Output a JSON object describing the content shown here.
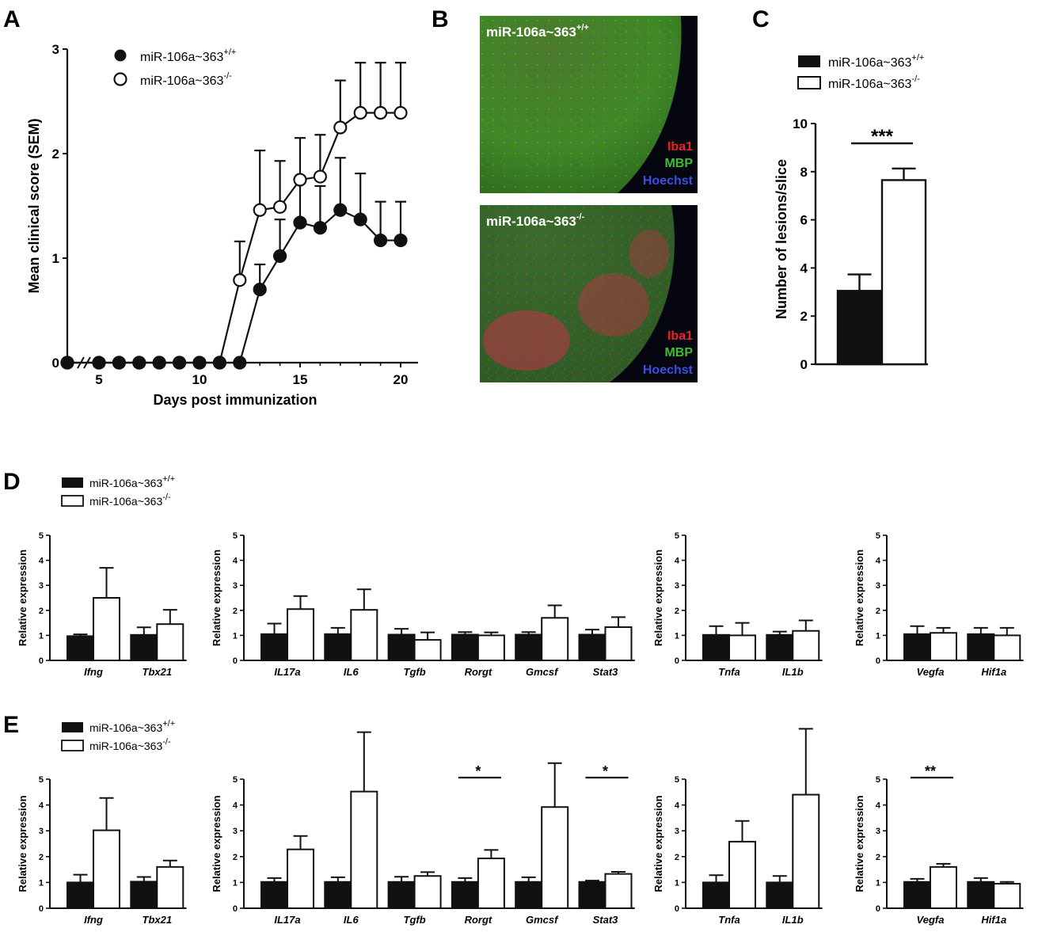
{
  "panels": {
    "A": "A",
    "B": "B",
    "C": "C",
    "D": "D",
    "E": "E"
  },
  "legend": {
    "wt_base": "miR-106a~363",
    "wt_sup": "+/+",
    "ko_base": "miR-106a~363",
    "ko_sup": "-/-"
  },
  "micrographs": {
    "top_label_base": "miR-106a~363",
    "top_label_sup": "+/+",
    "bottom_label_base": "miR-106a~363",
    "bottom_label_sup": "-/-",
    "stains": [
      "Iba1",
      "MBP",
      "Hoechst"
    ]
  },
  "colors": {
    "wt": "#111111",
    "ko": "#ffffff",
    "iba1": "#e8232a",
    "mbp": "#3fbf2f",
    "hoechst": "#3b4fe0"
  },
  "chart_data": [
    {
      "panel": "A",
      "type": "line",
      "xlabel": "Days post immunization",
      "ylabel": "Mean clinical score (SEM)",
      "xticks": [
        0,
        5,
        10,
        15,
        20
      ],
      "yticks": [
        0,
        1,
        2,
        3
      ],
      "ylim": [
        0,
        3
      ],
      "x_break": true,
      "series": [
        {
          "name": "miR-106a~363+/+",
          "x": [
            0,
            5,
            6,
            7,
            8,
            9,
            10,
            11,
            12,
            13,
            14,
            15,
            16,
            17,
            18,
            19,
            20
          ],
          "y": [
            0,
            0,
            0,
            0,
            0,
            0,
            0,
            0,
            0,
            0.7,
            1.02,
            1.34,
            1.29,
            1.46,
            1.37,
            1.17,
            1.17
          ],
          "err": [
            0,
            0,
            0,
            0,
            0,
            0,
            0,
            0,
            0,
            0.24,
            0.35,
            0.42,
            0.4,
            0.5,
            0.44,
            0.37,
            0.37
          ]
        },
        {
          "name": "miR-106a~363-/-",
          "x": [
            0,
            5,
            6,
            7,
            8,
            9,
            10,
            11,
            12,
            13,
            14,
            15,
            16,
            17,
            18,
            19,
            20
          ],
          "y": [
            0,
            0,
            0,
            0,
            0,
            0,
            0,
            0,
            0.79,
            1.46,
            1.49,
            1.75,
            1.78,
            2.25,
            2.39,
            2.39,
            2.39
          ],
          "err": [
            0,
            0,
            0,
            0,
            0,
            0,
            0,
            0,
            0.37,
            0.57,
            0.44,
            0.4,
            0.4,
            0.45,
            0.48,
            0.48,
            0.48
          ]
        }
      ]
    },
    {
      "panel": "C",
      "type": "bar",
      "ylabel": "Number of lesions/slice",
      "yticks": [
        0,
        2,
        4,
        6,
        8,
        10
      ],
      "ylim": [
        0,
        10
      ],
      "series": [
        {
          "name": "miR-106a~363+/+",
          "value": 3.05,
          "err": 0.68
        },
        {
          "name": "miR-106a~363-/-",
          "value": 7.65,
          "err": 0.48
        }
      ],
      "significance": "***"
    },
    {
      "panel": "D",
      "type": "bar",
      "ylabel": "Relative expression",
      "yticks": [
        0,
        1,
        2,
        3,
        4,
        5
      ],
      "ylim": [
        0,
        5
      ],
      "groups": [
        {
          "genes": [
            "Ifng",
            "Tbx21"
          ],
          "wt": [
            0.97,
            1.02
          ],
          "wt_err": [
            0.07,
            0.3
          ],
          "ko": [
            2.5,
            1.45
          ],
          "ko_err": [
            1.2,
            0.57
          ],
          "sig": []
        },
        {
          "genes": [
            "IL17a",
            "IL6",
            "Tgfb",
            "Rorgt",
            "Gmcsf",
            "Stat3"
          ],
          "wt": [
            1.05,
            1.05,
            1.03,
            1.03,
            1.03,
            1.03
          ],
          "wt_err": [
            0.42,
            0.25,
            0.23,
            0.1,
            0.1,
            0.2
          ],
          "ko": [
            2.05,
            2.02,
            0.82,
            1.0,
            1.7,
            1.33
          ],
          "ko_err": [
            0.52,
            0.82,
            0.3,
            0.12,
            0.5,
            0.4
          ],
          "sig": []
        },
        {
          "genes": [
            "Tnfa",
            "IL1b"
          ],
          "wt": [
            1.02,
            1.02
          ],
          "wt_err": [
            0.35,
            0.13
          ],
          "ko": [
            1.0,
            1.18
          ],
          "ko_err": [
            0.5,
            0.42
          ],
          "sig": []
        },
        {
          "genes": [
            "Vegfa",
            "Hif1a"
          ],
          "wt": [
            1.05,
            1.05
          ],
          "wt_err": [
            0.32,
            0.25
          ],
          "ko": [
            1.1,
            1.0
          ],
          "ko_err": [
            0.2,
            0.3
          ],
          "sig": []
        }
      ]
    },
    {
      "panel": "E",
      "type": "bar",
      "ylabel": "Relative expression",
      "yticks": [
        0,
        1,
        2,
        3,
        4,
        5
      ],
      "ylim": [
        0,
        5
      ],
      "groups": [
        {
          "genes": [
            "Ifng",
            "Tbx21"
          ],
          "wt": [
            1.0,
            1.03
          ],
          "wt_err": [
            0.3,
            0.18
          ],
          "ko": [
            3.02,
            1.6
          ],
          "ko_err": [
            1.25,
            0.25
          ],
          "sig": []
        },
        {
          "genes": [
            "IL17a",
            "IL6",
            "Tgfb",
            "Rorgt",
            "Gmcsf",
            "Stat3"
          ],
          "wt": [
            1.02,
            1.02,
            1.02,
            1.02,
            1.02,
            1.02
          ],
          "wt_err": [
            0.15,
            0.18,
            0.2,
            0.15,
            0.18,
            0.05
          ],
          "ko": [
            2.28,
            4.52,
            1.25,
            1.93,
            3.92,
            1.33
          ],
          "ko_err": [
            0.52,
            2.3,
            0.15,
            0.33,
            1.7,
            0.08
          ],
          "sig": [
            {
              "gene": "Rorgt",
              "label": "*"
            },
            {
              "gene": "Stat3",
              "label": "*"
            }
          ]
        },
        {
          "genes": [
            "Tnfa",
            "IL1b"
          ],
          "wt": [
            1.0,
            1.0
          ],
          "wt_err": [
            0.28,
            0.25
          ],
          "ko": [
            2.58,
            4.4
          ],
          "ko_err": [
            0.8,
            2.55
          ],
          "sig": []
        },
        {
          "genes": [
            "Vegfa",
            "Hif1a"
          ],
          "wt": [
            1.02,
            1.02
          ],
          "wt_err": [
            0.12,
            0.15
          ],
          "ko": [
            1.6,
            0.95
          ],
          "ko_err": [
            0.12,
            0.07
          ],
          "sig": [
            {
              "gene": "Vegfa",
              "label": "**"
            }
          ]
        }
      ]
    }
  ]
}
